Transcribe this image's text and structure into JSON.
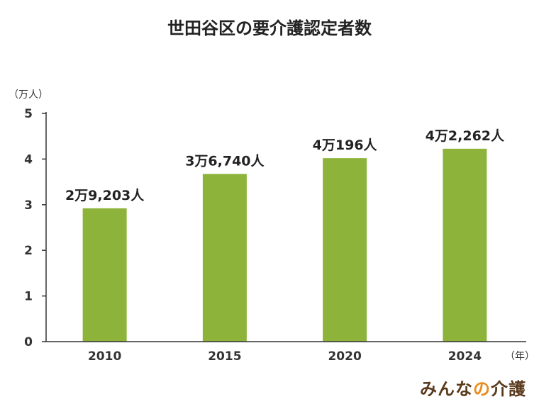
{
  "chart_data": {
    "type": "bar",
    "title": "世田谷区の要介護認定者数",
    "y_unit": "（万人）",
    "x_unit": "（年）",
    "categories": [
      "2010",
      "2015",
      "2020",
      "2024"
    ],
    "values": [
      2.9203,
      3.674,
      4.0196,
      4.2262
    ],
    "data_labels": [
      "2万9,203人",
      "3万6,740人",
      "4万196人",
      "4万2,262人"
    ],
    "yticks": [
      "0",
      "1",
      "2",
      "3",
      "4",
      "5"
    ],
    "ylim": [
      0,
      5
    ],
    "grid": false,
    "bar_color": "#8db33a"
  },
  "logo": {
    "part1": "みんな",
    "part2": "の",
    "part3": "介護"
  }
}
